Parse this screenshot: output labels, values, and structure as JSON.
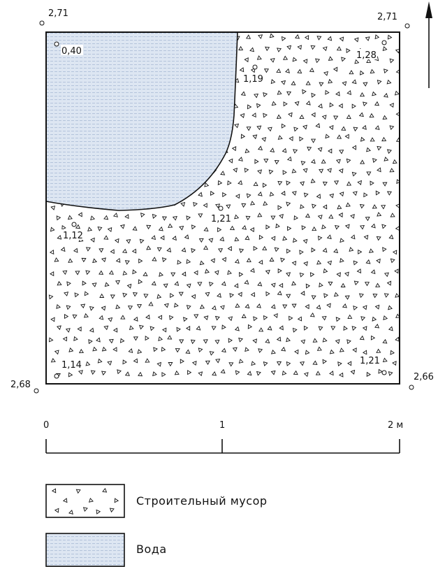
{
  "corner_elevations": {
    "top_left": "2,71",
    "top_right": "2,71",
    "bottom_left": "2,68",
    "bottom_right": "2,66"
  },
  "interior_elevations": {
    "water_point": "0,40",
    "upper_right": "1,28",
    "upper_middle": "1,19",
    "center": "1,21",
    "left_middle": "1,12",
    "bottom_left": "1,14",
    "bottom_right": "1,21"
  },
  "north_arrow": {
    "icon": "north-arrow-icon"
  },
  "scale_bar": {
    "tick_0": "0",
    "tick_1": "1",
    "tick_2": "2 м"
  },
  "legend": {
    "debris_label": "Строительный мусор",
    "water_label": "Вода"
  },
  "colors": {
    "water_fill": "#dde6f2",
    "water_line": "#a9bad6",
    "outline": "#111111"
  }
}
